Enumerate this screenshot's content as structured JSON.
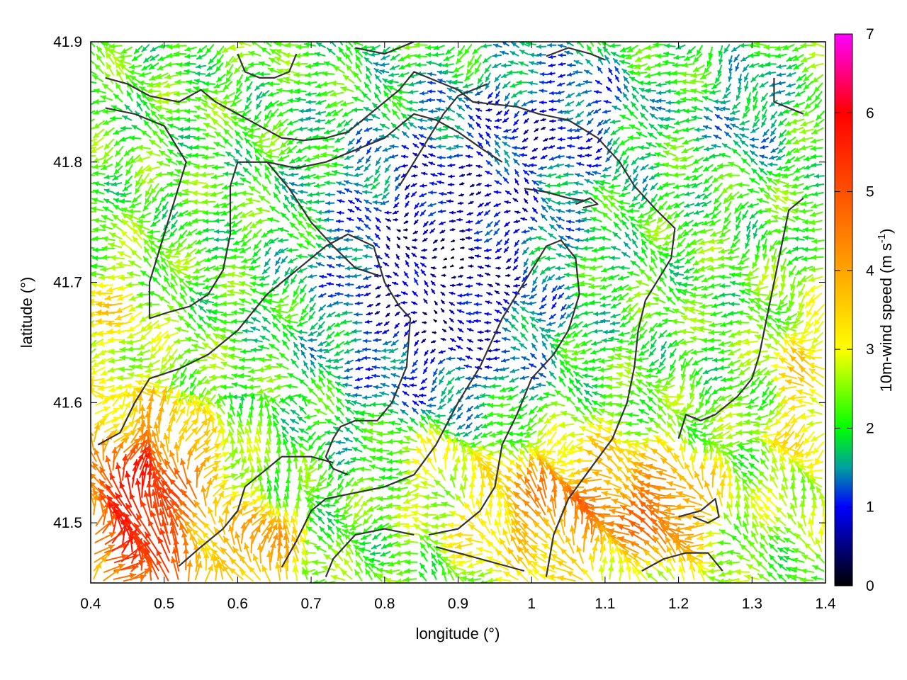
{
  "chart_data": {
    "type": "vector-field",
    "xlabel": "longitude (°)",
    "ylabel": "latitude (°)",
    "xlim": [
      0.4,
      1.4
    ],
    "ylim": [
      41.45,
      41.9
    ],
    "xticks": [
      "0.4",
      "0.5",
      "0.6",
      "0.7",
      "0.8",
      "0.9",
      "1",
      "1.1",
      "1.2",
      "1.3",
      "1.4"
    ],
    "yticks": [
      "41.5",
      "41.6",
      "41.7",
      "41.8",
      "41.9"
    ],
    "colorbar": {
      "label_main": "10m-wind speed (m s",
      "label_sup": "-1",
      "label_end": ")",
      "range": [
        0,
        7
      ],
      "ticks": [
        "0",
        "1",
        "2",
        "3",
        "4",
        "5",
        "6",
        "7"
      ],
      "stops": [
        {
          "value": 0,
          "color": "#000000"
        },
        {
          "value": 1,
          "color": "#0000ff"
        },
        {
          "value": 1.5,
          "color": "#00a0a0"
        },
        {
          "value": 2,
          "color": "#00ff00"
        },
        {
          "value": 3,
          "color": "#ffff00"
        },
        {
          "value": 4,
          "color": "#ffa500"
        },
        {
          "value": 5,
          "color": "#ff5000"
        },
        {
          "value": 6,
          "color": "#ff0000"
        },
        {
          "value": 7,
          "color": "#ff00ff"
        }
      ]
    },
    "contour_color": "#333333",
    "contours": [
      [
        [
          0.42,
          41.87
        ],
        [
          0.45,
          41.865
        ],
        [
          0.48,
          41.855
        ],
        [
          0.52,
          41.85
        ],
        [
          0.55,
          41.86
        ],
        [
          0.57,
          41.85
        ],
        [
          0.6,
          41.84
        ],
        [
          0.63,
          41.83
        ],
        [
          0.66,
          41.82
        ],
        [
          0.69,
          41.818
        ],
        [
          0.72,
          41.82
        ],
        [
          0.75,
          41.825
        ],
        [
          0.78,
          41.84
        ],
        [
          0.8,
          41.85
        ],
        [
          0.82,
          41.86
        ],
        [
          0.84,
          41.875
        ],
        [
          0.86,
          41.87
        ],
        [
          0.88,
          41.865
        ],
        [
          0.9,
          41.86
        ],
        [
          0.92,
          41.85
        ],
        [
          0.95,
          41.848
        ],
        [
          0.98,
          41.846
        ],
        [
          1.01,
          41.84
        ],
        [
          1.05,
          41.835
        ],
        [
          1.09,
          41.82
        ],
        [
          1.12,
          41.8
        ],
        [
          1.14,
          41.78
        ],
        [
          1.17,
          41.76
        ],
        [
          1.195,
          41.745
        ],
        [
          1.19,
          41.72
        ],
        [
          1.17,
          41.7
        ],
        [
          1.155,
          41.685
        ],
        [
          1.145,
          41.66
        ],
        [
          1.14,
          41.63
        ],
        [
          1.13,
          41.6
        ],
        [
          1.11,
          41.57
        ],
        [
          1.08,
          41.545
        ],
        [
          1.05,
          41.52
        ],
        [
          1.03,
          41.49
        ],
        [
          1.02,
          41.455
        ]
      ],
      [
        [
          0.42,
          41.845
        ],
        [
          0.46,
          41.84
        ],
        [
          0.5,
          41.83
        ],
        [
          0.53,
          41.8
        ],
        [
          0.515,
          41.77
        ],
        [
          0.5,
          41.74
        ],
        [
          0.48,
          41.7
        ],
        [
          0.48,
          41.67
        ],
        [
          0.505,
          41.675
        ],
        [
          0.535,
          41.68
        ],
        [
          0.56,
          41.69
        ],
        [
          0.58,
          41.71
        ],
        [
          0.59,
          41.74
        ],
        [
          0.59,
          41.78
        ],
        [
          0.6,
          41.8
        ],
        [
          0.64,
          41.8
        ],
        [
          0.68,
          41.795
        ],
        [
          0.72,
          41.8
        ],
        [
          0.76,
          41.81
        ],
        [
          0.8,
          41.82
        ],
        [
          0.84,
          41.84
        ],
        [
          0.87,
          41.835
        ],
        [
          0.9,
          41.825
        ],
        [
          0.935,
          41.81
        ],
        [
          0.96,
          41.8
        ]
      ],
      [
        [
          0.64,
          41.8
        ],
        [
          0.67,
          41.778
        ],
        [
          0.7,
          41.75
        ],
        [
          0.73,
          41.73
        ],
        [
          0.76,
          41.712
        ],
        [
          0.795,
          41.705
        ]
      ],
      [
        [
          0.41,
          41.565
        ],
        [
          0.44,
          41.575
        ],
        [
          0.46,
          41.6
        ],
        [
          0.48,
          41.62
        ],
        [
          0.52,
          41.628
        ],
        [
          0.56,
          41.64
        ],
        [
          0.6,
          41.66
        ],
        [
          0.64,
          41.69
        ],
        [
          0.68,
          41.71
        ],
        [
          0.72,
          41.73
        ],
        [
          0.75,
          41.74
        ],
        [
          0.785,
          41.73
        ],
        [
          0.8,
          41.7
        ],
        [
          0.82,
          41.68
        ],
        [
          0.835,
          41.67
        ],
        [
          0.83,
          41.63
        ],
        [
          0.81,
          41.6
        ],
        [
          0.79,
          41.585
        ],
        [
          0.76,
          41.585
        ],
        [
          0.74,
          41.58
        ],
        [
          0.73,
          41.57
        ],
        [
          0.72,
          41.555
        ],
        [
          0.73,
          41.545
        ],
        [
          0.75,
          41.54
        ]
      ],
      [
        [
          0.52,
          41.464
        ],
        [
          0.55,
          41.48
        ],
        [
          0.58,
          41.495
        ],
        [
          0.6,
          41.51
        ],
        [
          0.61,
          41.53
        ],
        [
          0.64,
          41.545
        ],
        [
          0.66,
          41.555
        ],
        [
          0.7,
          41.555
        ],
        [
          0.73,
          41.55
        ]
      ],
      [
        [
          0.66,
          41.463
        ],
        [
          0.68,
          41.485
        ],
        [
          0.7,
          41.51
        ],
        [
          0.72,
          41.52
        ],
        [
          0.76,
          41.525
        ],
        [
          0.8,
          41.53
        ],
        [
          0.84,
          41.54
        ],
        [
          0.87,
          41.565
        ],
        [
          0.9,
          41.6
        ],
        [
          0.93,
          41.63
        ],
        [
          0.96,
          41.67
        ],
        [
          0.99,
          41.7
        ],
        [
          1.02,
          41.73
        ],
        [
          1.04,
          41.735
        ],
        [
          1.06,
          41.72
        ],
        [
          1.065,
          41.69
        ],
        [
          1.05,
          41.66
        ],
        [
          1.03,
          41.64
        ],
        [
          1.0,
          41.62
        ],
        [
          0.98,
          41.59
        ],
        [
          0.96,
          41.565
        ],
        [
          0.95,
          41.53
        ],
        [
          0.93,
          41.51
        ],
        [
          0.9,
          41.495
        ],
        [
          0.86,
          41.49
        ]
      ],
      [
        [
          0.84,
          41.49
        ],
        [
          0.8,
          41.495
        ],
        [
          0.76,
          41.49
        ],
        [
          0.73,
          41.47
        ],
        [
          0.72,
          41.455
        ]
      ],
      [
        [
          0.87,
          41.48
        ],
        [
          0.9,
          41.475
        ],
        [
          0.93,
          41.47
        ],
        [
          0.96,
          41.465
        ],
        [
          0.99,
          41.46
        ]
      ],
      [
        [
          0.99,
          41.778
        ],
        [
          1.02,
          41.775
        ],
        [
          1.05,
          41.77
        ],
        [
          1.07,
          41.768
        ]
      ],
      [
        [
          0.82,
          41.78
        ],
        [
          0.84,
          41.8
        ],
        [
          0.86,
          41.82
        ],
        [
          0.88,
          41.84
        ],
        [
          0.9,
          41.855
        ],
        [
          0.94,
          41.865
        ]
      ],
      [
        [
          1.06,
          41.765
        ],
        [
          1.08,
          41.77
        ],
        [
          1.09,
          41.765
        ],
        [
          1.07,
          41.762
        ]
      ],
      [
        [
          1.2,
          41.505
        ],
        [
          1.23,
          41.51
        ],
        [
          1.25,
          41.52
        ],
        [
          1.255,
          41.505
        ],
        [
          1.24,
          41.5
        ],
        [
          1.22,
          41.505
        ]
      ],
      [
        [
          1.15,
          41.46
        ],
        [
          1.18,
          41.47
        ],
        [
          1.21,
          41.475
        ],
        [
          1.24,
          41.475
        ],
        [
          1.26,
          41.46
        ]
      ],
      [
        [
          1.33,
          41.87
        ],
        [
          1.33,
          41.85
        ],
        [
          1.37,
          41.84
        ]
      ],
      [
        [
          1.37,
          41.77
        ],
        [
          1.35,
          41.76
        ],
        [
          1.34,
          41.73
        ],
        [
          1.33,
          41.7
        ],
        [
          1.32,
          41.67
        ],
        [
          1.31,
          41.64
        ],
        [
          1.3,
          41.62
        ],
        [
          1.28,
          41.605
        ],
        [
          1.25,
          41.59
        ],
        [
          1.23,
          41.585
        ],
        [
          1.21,
          41.59
        ],
        [
          1.2,
          41.57
        ]
      ],
      [
        [
          0.6,
          41.89
        ],
        [
          0.61,
          41.875
        ],
        [
          0.63,
          41.87
        ],
        [
          0.65,
          41.87
        ],
        [
          0.67,
          41.875
        ],
        [
          0.68,
          41.89
        ]
      ],
      [
        [
          0.76,
          41.895
        ],
        [
          0.8,
          41.89
        ],
        [
          0.84,
          41.9
        ]
      ],
      [
        [
          1.02,
          41.888
        ],
        [
          1.05,
          41.895
        ],
        [
          1.08,
          41.89
        ],
        [
          1.1,
          41.885
        ]
      ]
    ]
  }
}
